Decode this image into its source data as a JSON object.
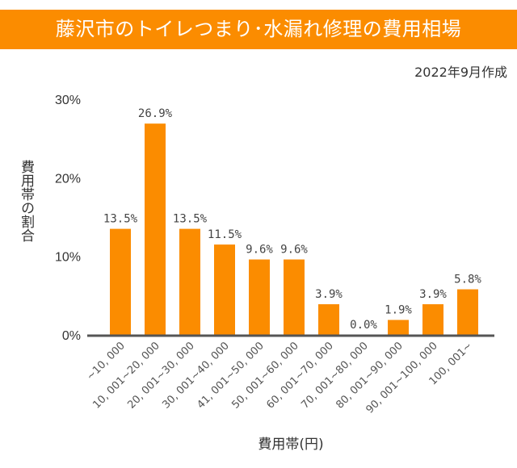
{
  "header": {
    "title": "藤沢市のトイレつまり･水漏れ修理の費用相場",
    "date": "2022年9月作成"
  },
  "chart_data": {
    "type": "bar",
    "title": "藤沢市のトイレつまり･水漏れ修理の費用相場",
    "xlabel": "費用帯(円)",
    "ylabel": "費用帯の割合",
    "ylim": [
      0,
      30
    ],
    "yticks": [
      "0%",
      "10%",
      "20%",
      "30%"
    ],
    "grid": false,
    "categories": [
      "~10, 000",
      "10, 001~20, 000",
      "20, 001~30, 000",
      "30, 001~40, 000",
      "41, 001~50, 000",
      "50, 001~60, 000",
      "60, 001~70, 000",
      "70, 001~80, 000",
      "80, 001~90, 000",
      "90, 001~100, 000",
      "100, 001~"
    ],
    "values": [
      13.5,
      26.9,
      13.5,
      11.5,
      9.6,
      9.6,
      3.9,
      0.0,
      1.9,
      3.9,
      5.8
    ],
    "data_labels": [
      "13.5%",
      "26.9%",
      "13.5%",
      "11.5%",
      "9.6%",
      "9.6%",
      "3.9%",
      "0.0%",
      "1.9%",
      "3.9%",
      "5.8%"
    ],
    "colors": {
      "bar": "#fb8c00",
      "axis": "#555555",
      "banner": "#fb8c00"
    }
  }
}
